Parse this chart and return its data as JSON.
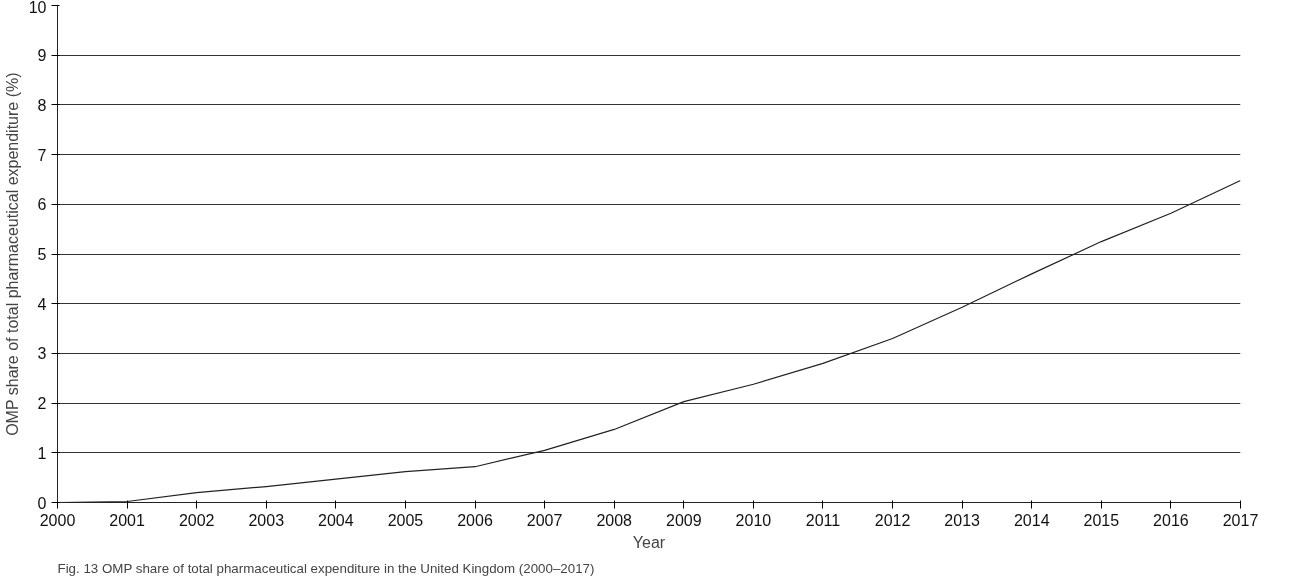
{
  "chart_data": {
    "type": "line",
    "xlabel": "Year",
    "ylabel": "OMP share of total pharmaceutical expenditure (%)",
    "x": [
      2000,
      2001,
      2002,
      2003,
      2004,
      2005,
      2006,
      2007,
      2008,
      2009,
      2010,
      2011,
      2012,
      2013,
      2014,
      2015,
      2016,
      2017
    ],
    "series": [
      {
        "color": "#222222",
        "values": [
          0.0,
          0.02,
          0.2,
          0.32,
          0.47,
          0.62,
          0.72,
          1.05,
          1.47,
          2.03,
          2.38,
          2.8,
          3.3,
          3.93,
          4.6,
          5.25,
          5.82,
          6.48
        ]
      }
    ],
    "xlim": [
      2000,
      2017
    ],
    "xticks": [
      2000,
      2001,
      2002,
      2003,
      2004,
      2005,
      2006,
      2007,
      2008,
      2009,
      2010,
      2011,
      2012,
      2013,
      2014,
      2015,
      2016,
      2017
    ],
    "ylim": [
      0,
      10
    ],
    "yticks": [
      0,
      1,
      2,
      3,
      4,
      5,
      6,
      7,
      8,
      9,
      10
    ],
    "grid": "y",
    "marker": "none",
    "line_style": "solid",
    "annotations": [
      "Fig. 13 OMP share of total pharmaceutical expenditure in the United Kingdom (2000–2017)"
    ]
  }
}
